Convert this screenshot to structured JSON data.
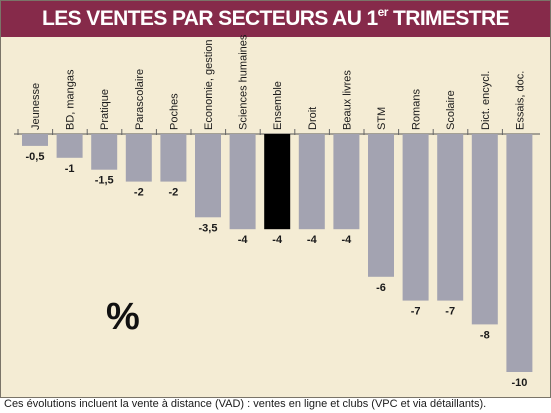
{
  "title": {
    "main": "LES VENTES PAR SECTEURS AU 1",
    "superscript": "er",
    "end": " TRIMESTRE"
  },
  "unit_label": "%",
  "footnote": "Ces évolutions incluent la vente à distance (VAD) : ventes en ligne et clubs (VPC et via détaillants).",
  "colors": {
    "title_bg": "#862a4a",
    "panel_bg": "#f4ecd4",
    "bar": "#a3a3b1",
    "highlight_bar": "#000000"
  },
  "chart_data": {
    "type": "bar",
    "categories": [
      "Jeunesse",
      "BD, mangas",
      "Pratique",
      "Parascolaire",
      "Poches",
      "Economie, gestion",
      "Sciences humaines",
      "Ensemble",
      "Droit",
      "Beaux livres",
      "STM",
      "Romans",
      "Scolaire",
      "Dict. encycl.",
      "Essais, doc."
    ],
    "values": [
      -0.5,
      -1,
      -1.5,
      -2,
      -2,
      -3.5,
      -4,
      -4,
      -4,
      -4,
      -6,
      -7,
      -7,
      -8,
      -10
    ],
    "value_labels": [
      "-0,5",
      "-1",
      "-1,5",
      "-2",
      "-2",
      "-3,5",
      "-4",
      "-4",
      "-4",
      "-4",
      "-6",
      "-7",
      "-7",
      "-8",
      "-10"
    ],
    "highlight": "Ensemble",
    "ylim": [
      -10,
      0
    ],
    "xlabel": "",
    "ylabel": "%",
    "grid": false,
    "legend": "none"
  }
}
